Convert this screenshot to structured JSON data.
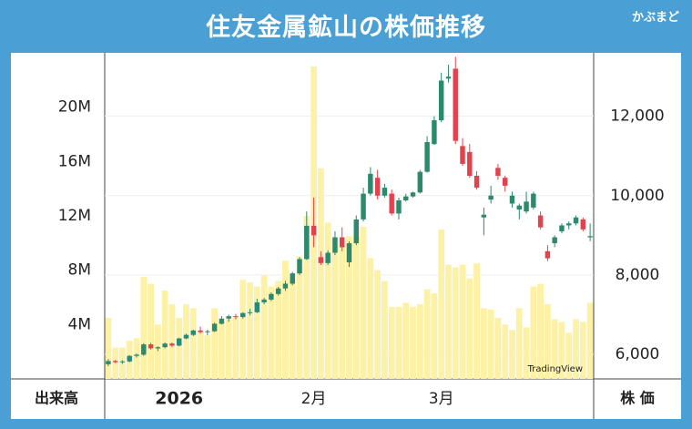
{
  "header": {
    "title": "住友金属鉱山の株価推移",
    "logo": "かぶまど"
  },
  "chart_data": {
    "type": "candlestick",
    "ylabel": "出来高",
    "y2label": "株 価",
    "watermark": "TradingView",
    "grid": true,
    "categories": [
      null,
      null,
      null,
      null,
      null,
      null,
      null,
      null,
      null,
      null,
      "2026",
      null,
      null,
      null,
      null,
      null,
      null,
      null,
      null,
      null,
      null,
      null,
      null,
      null,
      null,
      null,
      null,
      null,
      null,
      "2月",
      null,
      null,
      null,
      null,
      null,
      null,
      null,
      null,
      null,
      null,
      null,
      null,
      null,
      null,
      null,
      null,
      null,
      "3月",
      null,
      null,
      null,
      null,
      null,
      null,
      null,
      null,
      null,
      null,
      null,
      null,
      null,
      null,
      null,
      null,
      null,
      null,
      null,
      null,
      null
    ],
    "ylim": [
      0,
      24000000
    ],
    "yticks": [
      {
        "value": 4000000,
        "label": "4M"
      },
      {
        "value": 8000000,
        "label": "8M"
      },
      {
        "value": 12000000,
        "label": "12M"
      },
      {
        "value": 16000000,
        "label": "16M"
      },
      {
        "value": 20000000,
        "label": "20M"
      }
    ],
    "y2lim": [
      5380,
      13600
    ],
    "y2ticks": [
      {
        "value": 6000,
        "label": "6,000"
      },
      {
        "value": 8000,
        "label": "8,000"
      },
      {
        "value": 10000,
        "label": "10,000"
      },
      {
        "value": 12000,
        "label": "12,000"
      }
    ],
    "volume": {
      "color": "#fdf1a6",
      "values": [
        4500000,
        2300000,
        2300000,
        2800000,
        3000000,
        7500000,
        7000000,
        4000000,
        6500000,
        5500000,
        4500000,
        5500000,
        5200000,
        3500000,
        3200000,
        5200000,
        4200000,
        4400000,
        4600000,
        7300000,
        7100000,
        6800000,
        7600000,
        6800000,
        7200000,
        8700000,
        7400000,
        9000000,
        12000000,
        23000000,
        15500000,
        11500000,
        10300000,
        9800000,
        10500000,
        10600000,
        11200000,
        8900000,
        8000000,
        7200000,
        5300000,
        5300000,
        5600000,
        5300000,
        5500000,
        6600000,
        6300000,
        11000000,
        8400000,
        8200000,
        8400000,
        7400000,
        8500000,
        5200000,
        5100000,
        4500000,
        4000000,
        3600000,
        5200000,
        3800000,
        6800000,
        7000000,
        5500000,
        4400000,
        4200000,
        3400000,
        4400000,
        4200000,
        5600000
      ]
    },
    "candles": {
      "axis": "y2",
      "up_color": "#2b8a6b",
      "down_color": "#e0434d",
      "open": [
        5750,
        5830,
        5800,
        5820,
        5960,
        5990,
        6250,
        6150,
        6180,
        6270,
        6220,
        6400,
        6490,
        6600,
        6560,
        6580,
        6770,
        6900,
        6960,
        6940,
        7040,
        7060,
        7310,
        7380,
        7520,
        7660,
        7780,
        8040,
        8400,
        9240,
        8450,
        8300,
        8560,
        8950,
        8320,
        8800,
        9400,
        10050,
        10450,
        10000,
        10050,
        9550,
        9880,
        9980,
        10080,
        10600,
        11300,
        11900,
        12950,
        13200,
        11250,
        11100,
        10500,
        9450,
        9900,
        10700,
        10450,
        9800,
        9650,
        9600,
        9700,
        9500,
        8600,
        8800,
        9100,
        9250,
        9300,
        9400,
        8950
      ],
      "high": [
        5880,
        5860,
        5850,
        5980,
        6020,
        6280,
        6290,
        6200,
        6300,
        6300,
        6420,
        6520,
        6620,
        6700,
        6620,
        6800,
        6960,
        7000,
        7020,
        7060,
        7150,
        7400,
        7420,
        7560,
        7700,
        7850,
        8080,
        8450,
        9600,
        9950,
        8600,
        8620,
        9100,
        9200,
        8850,
        9500,
        10200,
        10720,
        10650,
        10300,
        10150,
        9950,
        10050,
        10100,
        10650,
        11500,
        12000,
        13100,
        13300,
        13500,
        11450,
        11300,
        10620,
        9700,
        10250,
        10800,
        10500,
        10100,
        9800,
        10100,
        10100,
        9600,
        8750,
        9000,
        9300,
        9350,
        9500,
        9450,
        9300
      ],
      "low": [
        5700,
        5780,
        5760,
        5800,
        5920,
        5960,
        6120,
        6080,
        6150,
        6180,
        6200,
        6380,
        6460,
        6520,
        6480,
        6560,
        6750,
        6820,
        6880,
        6900,
        6980,
        7040,
        7260,
        7340,
        7480,
        7600,
        7740,
        8000,
        8380,
        8700,
        8250,
        8250,
        8500,
        8600,
        8200,
        8750,
        9350,
        10000,
        9900,
        9950,
        9500,
        9400,
        9850,
        9950,
        10050,
        10580,
        11280,
        11850,
        12850,
        11300,
        10750,
        10450,
        10150,
        9000,
        9800,
        10400,
        10100,
        9700,
        9400,
        9550,
        9650,
        9150,
        8350,
        8700,
        9050,
        9150,
        9250,
        9100,
        8850
      ],
      "close": [
        5830,
        5800,
        5820,
        5960,
        5990,
        6250,
        6150,
        6180,
        6270,
        6220,
        6400,
        6490,
        6600,
        6560,
        6580,
        6770,
        6900,
        6960,
        6940,
        7040,
        7060,
        7310,
        7380,
        7520,
        7660,
        7780,
        8040,
        8400,
        9240,
        9000,
        8300,
        8560,
        8950,
        8700,
        8800,
        9400,
        10050,
        10550,
        10000,
        10200,
        9550,
        9880,
        9980,
        10080,
        10600,
        11350,
        11900,
        12900,
        13000,
        11380,
        10800,
        10500,
        10200,
        9520,
        10000,
        10500,
        10250,
        10000,
        9750,
        9850,
        10050,
        9200,
        8420,
        8950,
        9250,
        9300,
        9450,
        9150,
        8980
      ]
    }
  }
}
